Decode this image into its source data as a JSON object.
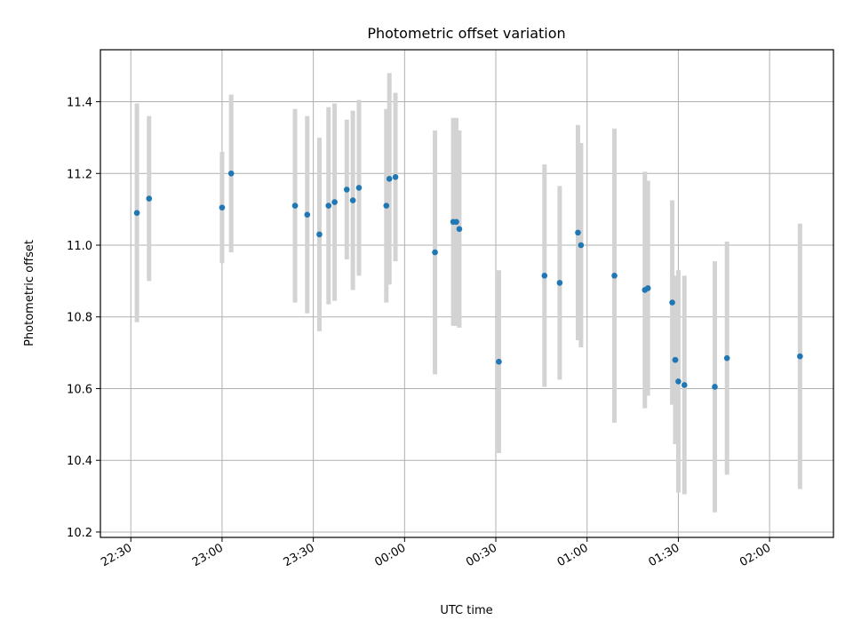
{
  "chart_data": {
    "type": "scatter",
    "title": "Photometric offset variation",
    "xlabel": "UTC time",
    "ylabel": "Photometric offset",
    "x_ticks": [
      "22:30",
      "23:00",
      "23:30",
      "00:00",
      "00:30",
      "01:00",
      "01:30",
      "02:00"
    ],
    "y_ticks": [
      "10.2",
      "10.4",
      "10.6",
      "10.8",
      "11.0",
      "11.2",
      "11.4"
    ],
    "x_range": [
      "22:20",
      "02:21"
    ],
    "ylim": [
      10.185,
      11.545
    ],
    "grid": true,
    "legend": "none",
    "colors": {
      "point": "#1f77b4",
      "errorbar": "#d3d3d3",
      "grid": "#b0b0b0"
    },
    "points": [
      {
        "x": "22:32",
        "y": 11.09,
        "err": 0.305
      },
      {
        "x": "22:36",
        "y": 11.13,
        "err": 0.23
      },
      {
        "x": "23:00",
        "y": 11.105,
        "err": 0.155
      },
      {
        "x": "23:03",
        "y": 11.2,
        "err": 0.22
      },
      {
        "x": "23:24",
        "y": 11.11,
        "err": 0.27
      },
      {
        "x": "23:28",
        "y": 11.085,
        "err": 0.275
      },
      {
        "x": "23:32",
        "y": 11.03,
        "err": 0.27
      },
      {
        "x": "23:35",
        "y": 11.11,
        "err": 0.275
      },
      {
        "x": "23:37",
        "y": 11.12,
        "err": 0.275
      },
      {
        "x": "23:41",
        "y": 11.155,
        "err": 0.195
      },
      {
        "x": "23:43",
        "y": 11.125,
        "err": 0.25
      },
      {
        "x": "23:45",
        "y": 11.16,
        "err": 0.245
      },
      {
        "x": "23:54",
        "y": 11.11,
        "err": 0.27
      },
      {
        "x": "23:55",
        "y": 11.185,
        "err": 0.295
      },
      {
        "x": "23:57",
        "y": 11.19,
        "err": 0.235
      },
      {
        "x": "00:10",
        "y": 10.98,
        "err": 0.34
      },
      {
        "x": "00:16",
        "y": 11.065,
        "err": 0.29
      },
      {
        "x": "00:17",
        "y": 11.065,
        "err": 0.29
      },
      {
        "x": "00:18",
        "y": 11.045,
        "err": 0.275
      },
      {
        "x": "00:31",
        "y": 10.675,
        "err": 0.255
      },
      {
        "x": "00:46",
        "y": 10.915,
        "err": 0.31
      },
      {
        "x": "00:51",
        "y": 10.895,
        "err": 0.27
      },
      {
        "x": "00:57",
        "y": 11.035,
        "err": 0.3
      },
      {
        "x": "00:58",
        "y": 11.0,
        "err": 0.285
      },
      {
        "x": "01:09",
        "y": 10.915,
        "err": 0.41
      },
      {
        "x": "01:19",
        "y": 10.875,
        "err": 0.33
      },
      {
        "x": "01:20",
        "y": 10.88,
        "err": 0.3
      },
      {
        "x": "01:28",
        "y": 10.84,
        "err": 0.285
      },
      {
        "x": "01:29",
        "y": 10.68,
        "err": 0.235
      },
      {
        "x": "01:29",
        "y": 10.68,
        "err": 0.235
      },
      {
        "x": "01:30",
        "y": 10.62,
        "err": 0.31
      },
      {
        "x": "01:32",
        "y": 10.61,
        "err": 0.305
      },
      {
        "x": "01:42",
        "y": 10.605,
        "err": 0.35
      },
      {
        "x": "01:46",
        "y": 10.685,
        "err": 0.325
      },
      {
        "x": "02:10",
        "y": 10.69,
        "err": 0.37
      }
    ]
  }
}
